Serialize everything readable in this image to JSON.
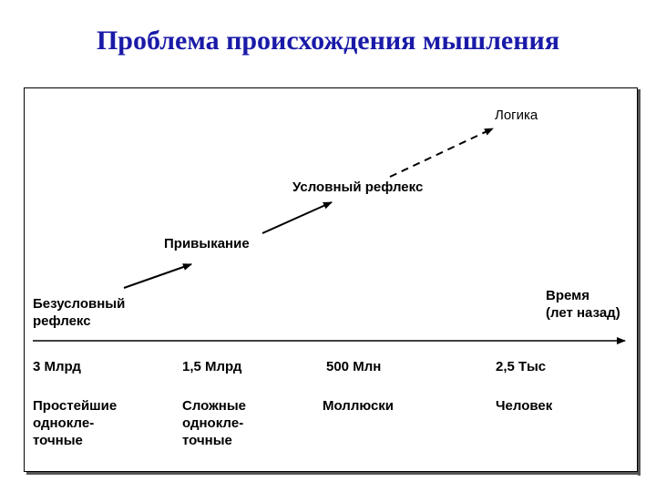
{
  "title": "Проблема происхождения мышления",
  "stages": [
    {
      "label": "Безусловный\nрефлекс"
    },
    {
      "label": "Привыкание"
    },
    {
      "label": "Условный рефлекс"
    },
    {
      "label": "Логика"
    }
  ],
  "axis": {
    "label": "Время\n(лет назад)"
  },
  "timeline": [
    {
      "time": "3 Млрд",
      "organism": "Простейшие\nодноклe-\nточные"
    },
    {
      "time": "1,5 Млрд",
      "organism": "Сложные\nодноклe-\nточные"
    },
    {
      "time": "500 Млн",
      "organism": "Моллюски"
    },
    {
      "time": "2,5 Тыс",
      "organism": "Человек"
    }
  ]
}
